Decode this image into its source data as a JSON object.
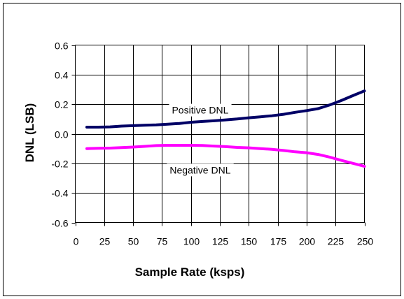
{
  "chart_data": {
    "type": "line",
    "title": "",
    "xlabel": "Sample Rate (ksps)",
    "ylabel": "DNL (LSB)",
    "xlim": [
      0,
      250
    ],
    "ylim": [
      -0.6,
      0.6
    ],
    "x_ticks": [
      "0",
      "25",
      "50",
      "75",
      "100",
      "125",
      "150",
      "175",
      "200",
      "225",
      "250"
    ],
    "y_ticks": [
      "0.6",
      "0.4",
      "0.2",
      "0.0",
      "-0.2",
      "-0.4",
      "-0.6"
    ],
    "x_tick_values": [
      0,
      25,
      50,
      75,
      100,
      125,
      150,
      175,
      200,
      225,
      250
    ],
    "y_tick_values": [
      0.6,
      0.4,
      0.2,
      0.0,
      -0.2,
      -0.4,
      -0.6
    ],
    "grid": true,
    "series": [
      {
        "name": "Positive DNL",
        "color": "#000066",
        "x": [
          10,
          20,
          30,
          40,
          50,
          60,
          70,
          80,
          90,
          100,
          110,
          120,
          130,
          140,
          150,
          160,
          170,
          180,
          190,
          200,
          210,
          220,
          230,
          240,
          250
        ],
        "y": [
          0.045,
          0.045,
          0.047,
          0.052,
          0.055,
          0.058,
          0.06,
          0.065,
          0.07,
          0.078,
          0.083,
          0.088,
          0.094,
          0.1,
          0.108,
          0.115,
          0.122,
          0.132,
          0.145,
          0.157,
          0.17,
          0.195,
          0.225,
          0.258,
          0.29
        ]
      },
      {
        "name": "Negative DNL",
        "color": "#ff00ff",
        "x": [
          10,
          20,
          30,
          40,
          50,
          60,
          70,
          80,
          90,
          100,
          110,
          120,
          130,
          140,
          150,
          160,
          170,
          180,
          190,
          200,
          210,
          220,
          230,
          240,
          250
        ],
        "y": [
          -0.1,
          -0.098,
          -0.097,
          -0.093,
          -0.09,
          -0.085,
          -0.08,
          -0.078,
          -0.078,
          -0.078,
          -0.079,
          -0.083,
          -0.087,
          -0.092,
          -0.095,
          -0.1,
          -0.105,
          -0.113,
          -0.122,
          -0.128,
          -0.14,
          -0.158,
          -0.18,
          -0.2,
          -0.22
        ]
      }
    ],
    "annotations": [
      {
        "text": "Positive DNL",
        "x": 108,
        "y": 0.16
      },
      {
        "text": "Negative DNL",
        "x": 108,
        "y": -0.245
      }
    ]
  }
}
